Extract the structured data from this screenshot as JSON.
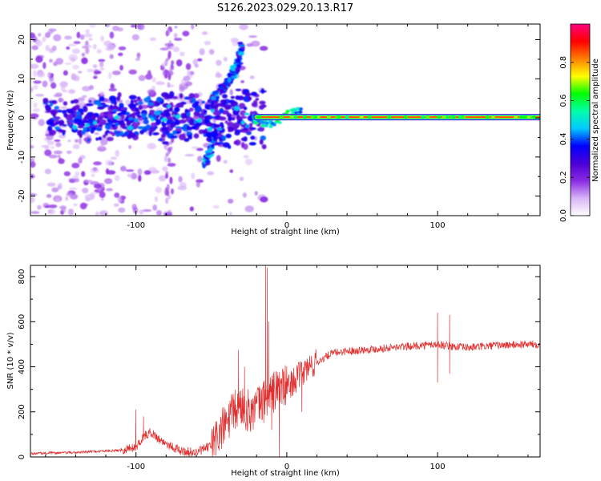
{
  "title": "S126.2023.029.20.13.R17",
  "colors": {
    "snr_line": "#e03030",
    "frame": "#000000",
    "signal_band_core": "#e0001a"
  },
  "chart_data": [
    {
      "type": "heatmap",
      "xlabel": "Height of straight line (km)",
      "ylabel": "Frequency (Hz)",
      "xlim": [
        -170,
        168
      ],
      "ylim": [
        -25,
        24
      ],
      "xticks": [
        -100,
        0,
        100
      ],
      "yticks": [
        -20,
        -10,
        0,
        10,
        20
      ],
      "grid": false,
      "colorbar": {
        "label": "Normalized spectral amplitude",
        "range": [
          0.0,
          1.0
        ],
        "ticks": [
          "0.0",
          "0.2",
          "0.4",
          "0.6",
          "0.8"
        ],
        "tick_values": [
          0.0,
          0.2,
          0.4,
          0.6,
          0.8
        ],
        "colormap": [
          "#ffffff",
          "#d8b4f8",
          "#8a2be2",
          "#4b00d8",
          "#0000ff",
          "#00c8ff",
          "#00ffaa",
          "#00ff00",
          "#ffff00",
          "#ff8000",
          "#ff0000",
          "#ff0080"
        ]
      },
      "features": {
        "carrier_line": {
          "x_range": [
            -20,
            168
          ],
          "freq_hz": 0.2,
          "amplitude": 0.85
        },
        "noise_region": {
          "x_range": [
            -170,
            -15
          ],
          "freq_range_hz": [
            -25,
            24
          ]
        },
        "upper_branch": [
          [
            -50,
            4
          ],
          [
            -40,
            9
          ],
          [
            -33,
            13
          ],
          [
            -30,
            18
          ]
        ],
        "lower_branch": [
          [
            -55,
            -12
          ],
          [
            -50,
            -8
          ]
        ]
      }
    },
    {
      "type": "line",
      "xlabel": "Height of straight line (km)",
      "ylabel": "SNR (10 * v/v)",
      "xlim": [
        -170,
        168
      ],
      "ylim": [
        0,
        850
      ],
      "xticks": [
        -100,
        0,
        100
      ],
      "yticks": [
        0,
        200,
        400,
        600,
        800
      ],
      "grid": false,
      "series": [
        {
          "envelope": [
            [
              -170,
              15
            ],
            [
              -140,
              20
            ],
            [
              -110,
              30
            ],
            [
              -100,
              45
            ],
            [
              -95,
              90
            ],
            [
              -90,
              110
            ],
            [
              -85,
              80
            ],
            [
              -80,
              60
            ],
            [
              -70,
              25
            ],
            [
              -60,
              20
            ],
            [
              -50,
              50
            ],
            [
              -45,
              100
            ],
            [
              -40,
              150
            ],
            [
              -35,
              200
            ],
            [
              -30,
              230
            ],
            [
              -25,
              200
            ],
            [
              -20,
              220
            ],
            [
              -15,
              250
            ],
            [
              -10,
              280
            ],
            [
              -5,
              310
            ],
            [
              0,
              310
            ],
            [
              5,
              340
            ],
            [
              10,
              370
            ],
            [
              15,
              400
            ],
            [
              20,
              420
            ],
            [
              25,
              440
            ],
            [
              30,
              460
            ],
            [
              40,
              470
            ],
            [
              60,
              480
            ],
            [
              80,
              490
            ],
            [
              100,
              500
            ],
            [
              110,
              490
            ],
            [
              120,
              485
            ],
            [
              140,
              495
            ],
            [
              160,
              500
            ],
            [
              168,
              500
            ]
          ],
          "spikes": [
            [
              -100,
              210
            ],
            [
              -95,
              180
            ],
            [
              -32,
              475
            ],
            [
              -28,
              400
            ],
            [
              -14,
              850
            ],
            [
              -13,
              840
            ],
            [
              -12,
              600
            ],
            [
              -10,
              120
            ],
            [
              -5,
              0
            ],
            [
              10,
              200
            ],
            [
              100,
              640
            ],
            [
              100,
              330
            ],
            [
              108,
              630
            ],
            [
              108,
              370
            ]
          ]
        }
      ]
    }
  ]
}
